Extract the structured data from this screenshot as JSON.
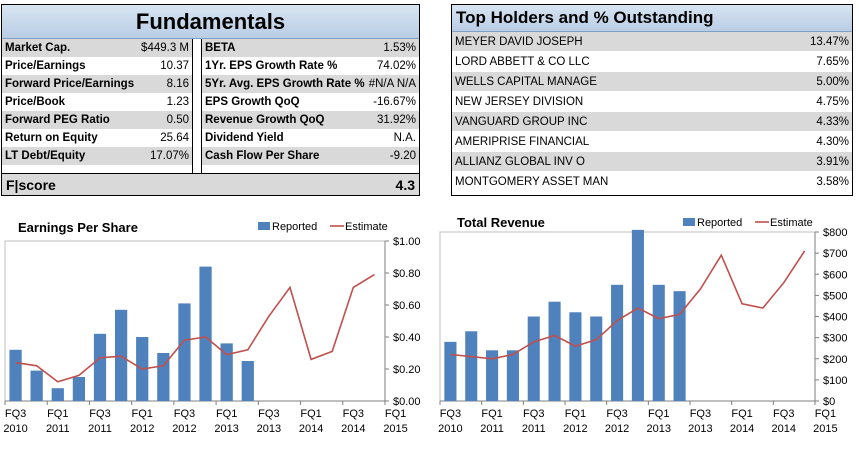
{
  "fundamentals": {
    "title": "Fundamentals",
    "left_rows": [
      {
        "label": "Market Cap.",
        "value": "$449.3 M"
      },
      {
        "label": "Price/Earnings",
        "value": "10.37"
      },
      {
        "label": "Forward Price/Earnings",
        "value": "8.16"
      },
      {
        "label": "Price/Book",
        "value": "1.23"
      },
      {
        "label": "Forward PEG Ratio",
        "value": "0.50"
      },
      {
        "label": "Return on Equity",
        "value": "25.64"
      },
      {
        "label": "LT Debt/Equity",
        "value": "17.07%"
      }
    ],
    "right_rows": [
      {
        "label": "BETA",
        "value": "1.53%"
      },
      {
        "label": "1Yr. EPS Growth Rate %",
        "value": "74.02%"
      },
      {
        "label": "5Yr. Avg. EPS Growth Rate %",
        "value": "#N/A N/A"
      },
      {
        "label": "EPS Growth QoQ",
        "value": "-16.67%"
      },
      {
        "label": "Revenue Growth QoQ",
        "value": "31.92%"
      },
      {
        "label": "Dividend Yield",
        "value": "N.A."
      },
      {
        "label": "Cash Flow Per Share",
        "value": "-9.20"
      }
    ],
    "fscore_label": "F|score",
    "fscore_value": "4.3"
  },
  "holders": {
    "title": "Top Holders and % Outstanding",
    "rows": [
      {
        "name": "MEYER DAVID JOSEPH",
        "pct": "13.47%"
      },
      {
        "name": "LORD ABBETT & CO LLC",
        "pct": "7.65%"
      },
      {
        "name": "WELLS CAPITAL MANAGE",
        "pct": "5.00%"
      },
      {
        "name": "NEW JERSEY DIVISION",
        "pct": "4.75%"
      },
      {
        "name": "VANGUARD GROUP INC",
        "pct": "4.33%"
      },
      {
        "name": "AMERIPRISE FINANCIAL",
        "pct": "4.30%"
      },
      {
        "name": "ALLIANZ GLOBAL INV O",
        "pct": "3.91%"
      },
      {
        "name": "MONTGOMERY ASSET MAN",
        "pct": "3.58%"
      }
    ]
  },
  "colors": {
    "bar": "#4f81bd",
    "line": "#c0504d",
    "header": "#b9cde5",
    "alt_row": "#d9d9d9"
  },
  "chart_data": [
    {
      "type": "bar",
      "title": "Earnings Per Share",
      "legend": [
        "Reported",
        "Estimate"
      ],
      "legend_position": "top-right",
      "grid": false,
      "ylim": [
        0,
        1.0
      ],
      "yticks": [
        "$0.00",
        "$0.20",
        "$0.40",
        "$0.60",
        "$0.80",
        "$1.00"
      ],
      "xticks": [
        [
          "FQ3",
          "2010"
        ],
        [
          "FQ1",
          "2011"
        ],
        [
          "FQ3",
          "2011"
        ],
        [
          "FQ1",
          "2012"
        ],
        [
          "FQ3",
          "2012"
        ],
        [
          "FQ1",
          "2013"
        ],
        [
          "FQ3",
          "2013"
        ],
        [
          "FQ1",
          "2014"
        ],
        [
          "FQ3",
          "2014"
        ],
        [
          "FQ1",
          "2015"
        ]
      ],
      "series": [
        {
          "name": "Reported",
          "values": [
            0.32,
            0.19,
            0.08,
            0.15,
            0.42,
            0.57,
            0.4,
            0.3,
            0.61,
            0.84,
            0.36,
            0.25
          ]
        },
        {
          "name": "Estimate",
          "values": [
            0.24,
            0.22,
            0.12,
            0.16,
            0.27,
            0.28,
            0.2,
            0.22,
            0.38,
            0.4,
            0.29,
            0.32,
            0.53,
            0.71,
            0.26,
            0.31,
            0.71,
            0.79
          ]
        }
      ]
    },
    {
      "type": "bar",
      "title": "Total Revenue",
      "legend": [
        "Reported",
        "Estimate"
      ],
      "legend_position": "top-right",
      "grid": false,
      "ylim": [
        0,
        800
      ],
      "yticks": [
        "$0",
        "$100",
        "$200",
        "$300",
        "$400",
        "$500",
        "$600",
        "$700",
        "$800"
      ],
      "xticks": [
        [
          "FQ3",
          "2010"
        ],
        [
          "FQ1",
          "2011"
        ],
        [
          "FQ3",
          "2011"
        ],
        [
          "FQ1",
          "2012"
        ],
        [
          "FQ3",
          "2012"
        ],
        [
          "FQ1",
          "2013"
        ],
        [
          "FQ3",
          "2013"
        ],
        [
          "FQ1",
          "2014"
        ],
        [
          "FQ3",
          "2014"
        ],
        [
          "FQ1",
          "2015"
        ]
      ],
      "series": [
        {
          "name": "Reported",
          "values": [
            280,
            330,
            240,
            240,
            400,
            470,
            420,
            400,
            550,
            810,
            550,
            520
          ]
        },
        {
          "name": "Estimate",
          "values": [
            220,
            210,
            200,
            220,
            280,
            310,
            260,
            290,
            380,
            440,
            390,
            410,
            530,
            690,
            460,
            440,
            560,
            710
          ]
        }
      ]
    }
  ]
}
